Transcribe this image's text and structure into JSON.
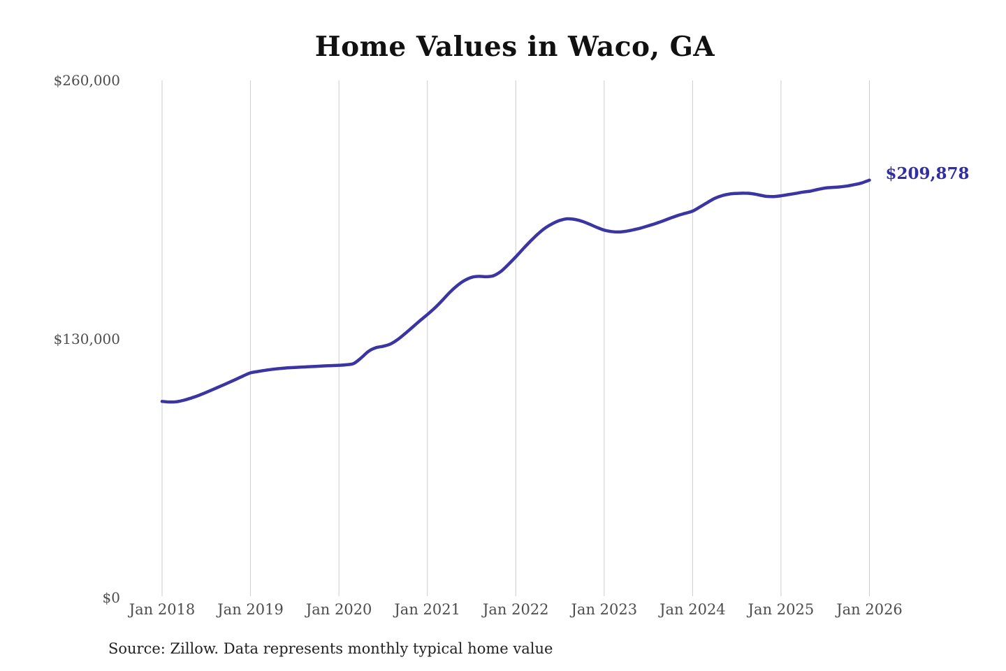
{
  "chart_data": {
    "type": "line",
    "title": "Home Values in Waco, GA",
    "source_note": "Source: Zillow. Data represents monthly typical home value",
    "end_label": "$209,878",
    "final_value": 209878,
    "line_color": "#3b35a3",
    "end_label_color": "#322da3",
    "grid_color": "#cccccc",
    "tick_color": "#4d4d4d",
    "grid": "vertical-only",
    "legend_position": "none",
    "ylim": [
      0,
      260000
    ],
    "y_tick_values": [
      0,
      130000,
      260000
    ],
    "y_tick_labels": [
      "$0",
      "$130,000",
      "$260,000"
    ],
    "x_tick_labels": [
      "Jan 2018",
      "Jan 2019",
      "Jan 2020",
      "Jan 2021",
      "Jan 2022",
      "Jan 2023",
      "Jan 2024",
      "Jan 2025",
      "Jan 2026"
    ],
    "x": [
      "2018-01",
      "2018-02",
      "2018-03",
      "2018-04",
      "2018-05",
      "2018-06",
      "2018-07",
      "2018-08",
      "2018-09",
      "2018-10",
      "2018-11",
      "2018-12",
      "2019-01",
      "2019-02",
      "2019-03",
      "2019-04",
      "2019-05",
      "2019-06",
      "2019-07",
      "2019-08",
      "2019-09",
      "2019-10",
      "2019-11",
      "2019-12",
      "2020-01",
      "2020-02",
      "2020-03",
      "2020-04",
      "2020-05",
      "2020-06",
      "2020-07",
      "2020-08",
      "2020-09",
      "2020-10",
      "2020-11",
      "2020-12",
      "2021-01",
      "2021-02",
      "2021-03",
      "2021-04",
      "2021-05",
      "2021-06",
      "2021-07",
      "2021-08",
      "2021-09",
      "2021-10",
      "2021-11",
      "2021-12",
      "2022-01",
      "2022-02",
      "2022-03",
      "2022-04",
      "2022-05",
      "2022-06",
      "2022-07",
      "2022-08",
      "2022-09",
      "2022-10",
      "2022-11",
      "2022-12",
      "2023-01",
      "2023-02",
      "2023-03",
      "2023-04",
      "2023-05",
      "2023-06",
      "2023-07",
      "2023-08",
      "2023-09",
      "2023-10",
      "2023-11",
      "2023-12",
      "2024-01",
      "2024-02",
      "2024-03",
      "2024-04",
      "2024-05",
      "2024-06",
      "2024-07",
      "2024-08",
      "2024-09",
      "2024-10",
      "2024-11",
      "2024-12",
      "2025-01",
      "2025-02",
      "2025-03",
      "2025-04",
      "2025-05",
      "2025-06",
      "2025-07",
      "2025-08",
      "2025-09",
      "2025-10",
      "2025-11",
      "2025-12",
      "2026-01"
    ],
    "values": [
      98612,
      98344,
      98471,
      99263,
      100385,
      101692,
      103188,
      104776,
      106392,
      108013,
      109688,
      111398,
      112985,
      113664,
      114277,
      114798,
      115183,
      115476,
      115702,
      115894,
      116077,
      116268,
      116459,
      116622,
      116790,
      117021,
      117684,
      120452,
      123761,
      125618,
      126342,
      127493,
      129774,
      132781,
      135986,
      139208,
      142276,
      145528,
      149291,
      153277,
      156684,
      159302,
      160988,
      161487,
      161314,
      161836,
      164027,
      167488,
      171294,
      175311,
      179184,
      182776,
      185793,
      188013,
      189622,
      190437,
      190114,
      189166,
      187731,
      186118,
      184731,
      184014,
      183792,
      184186,
      184904,
      185812,
      186923,
      188079,
      189384,
      190772,
      192094,
      193187,
      194296,
      196383,
      198581,
      200684,
      202079,
      202877,
      203199,
      203301,
      203094,
      202416,
      201728,
      201593,
      201984,
      202588,
      203174,
      203871,
      204327,
      205184,
      205896,
      206212,
      206438,
      206917,
      207612,
      208499,
      209878
    ]
  }
}
